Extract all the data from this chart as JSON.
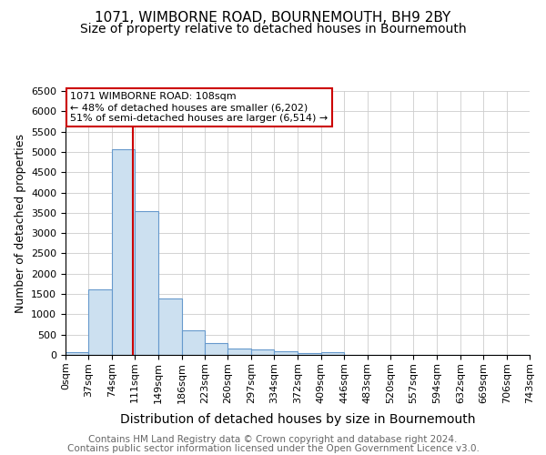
{
  "title": "1071, WIMBORNE ROAD, BOURNEMOUTH, BH9 2BY",
  "subtitle": "Size of property relative to detached houses in Bournemouth",
  "xlabel": "Distribution of detached houses by size in Bournemouth",
  "ylabel": "Number of detached properties",
  "bin_edges": [
    0,
    37,
    74,
    111,
    149,
    186,
    223,
    260,
    297,
    334,
    372,
    409,
    446,
    483,
    520,
    557,
    594,
    632,
    669,
    706,
    743
  ],
  "bar_heights": [
    75,
    1625,
    5075,
    3550,
    1400,
    600,
    300,
    160,
    130,
    95,
    45,
    75,
    0,
    0,
    0,
    0,
    0,
    0,
    0,
    0
  ],
  "bar_color": "#cce0f0",
  "bar_edge_color": "#6699cc",
  "vline_x": 108,
  "vline_color": "#cc0000",
  "annotation_text": "1071 WIMBORNE ROAD: 108sqm\n← 48% of detached houses are smaller (6,202)\n51% of semi-detached houses are larger (6,514) →",
  "annotation_box_color": "#cc0000",
  "ylim": [
    0,
    6500
  ],
  "xlim": [
    0,
    743
  ],
  "footnote1": "Contains HM Land Registry data © Crown copyright and database right 2024.",
  "footnote2": "Contains public sector information licensed under the Open Government Licence v3.0.",
  "background_color": "#ffffff",
  "grid_color": "#cccccc",
  "title_fontsize": 11,
  "subtitle_fontsize": 10,
  "xlabel_fontsize": 10,
  "ylabel_fontsize": 9,
  "tick_fontsize": 8,
  "annotation_fontsize": 8,
  "footnote_fontsize": 7.5
}
